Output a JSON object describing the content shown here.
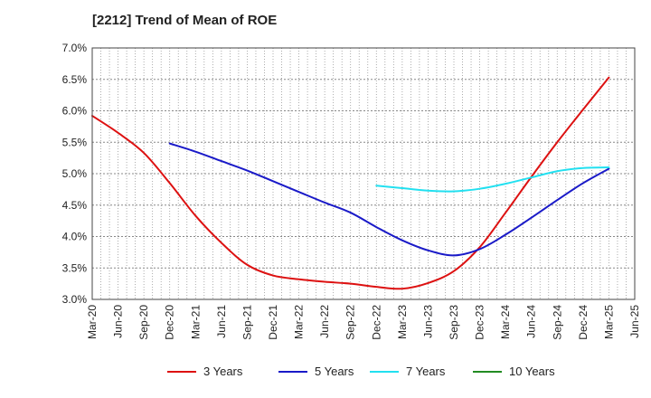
{
  "chart_data": {
    "type": "line",
    "title": "[2212]  Trend of Mean of ROE",
    "xlabel": "",
    "ylabel": "",
    "x": [
      "Mar-20",
      "Jun-20",
      "Sep-20",
      "Dec-20",
      "Mar-21",
      "Jun-21",
      "Sep-21",
      "Dec-21",
      "Mar-22",
      "Jun-22",
      "Sep-22",
      "Dec-22",
      "Mar-23",
      "Jun-23",
      "Sep-23",
      "Dec-23",
      "Mar-24",
      "Jun-24",
      "Sep-24",
      "Dec-24",
      "Mar-25",
      "Jun-25"
    ],
    "ylim": [
      3.0,
      7.0
    ],
    "yticks": [
      "3.0%",
      "3.5%",
      "4.0%",
      "4.5%",
      "5.0%",
      "5.5%",
      "6.0%",
      "6.5%",
      "7.0%"
    ],
    "grid": true,
    "legend_position": "bottom",
    "series": [
      {
        "name": "3 Years",
        "color": "#dd1111",
        "values": [
          5.92,
          5.65,
          5.33,
          4.85,
          4.33,
          3.9,
          3.55,
          3.38,
          3.32,
          3.28,
          3.25,
          3.2,
          3.17,
          3.26,
          3.45,
          3.83,
          4.38,
          4.95,
          5.5,
          6.02,
          6.53,
          null
        ]
      },
      {
        "name": "5 Years",
        "color": "#1a1ac8",
        "values": [
          null,
          null,
          null,
          5.48,
          5.35,
          5.2,
          5.05,
          4.88,
          4.71,
          4.54,
          4.38,
          4.15,
          3.94,
          3.78,
          3.7,
          3.8,
          4.03,
          4.3,
          4.58,
          4.85,
          5.08,
          null
        ]
      },
      {
        "name": "7 Years",
        "color": "#22e0f0",
        "values": [
          null,
          null,
          null,
          null,
          null,
          null,
          null,
          null,
          null,
          null,
          null,
          4.81,
          4.77,
          4.73,
          4.72,
          4.76,
          4.84,
          4.94,
          5.04,
          5.09,
          5.1,
          null
        ]
      },
      {
        "name": "10 Years",
        "color": "#228b22",
        "values": [
          null,
          null,
          null,
          null,
          null,
          null,
          null,
          null,
          null,
          null,
          null,
          null,
          null,
          null,
          null,
          null,
          null,
          null,
          null,
          null,
          null,
          null
        ]
      }
    ]
  }
}
